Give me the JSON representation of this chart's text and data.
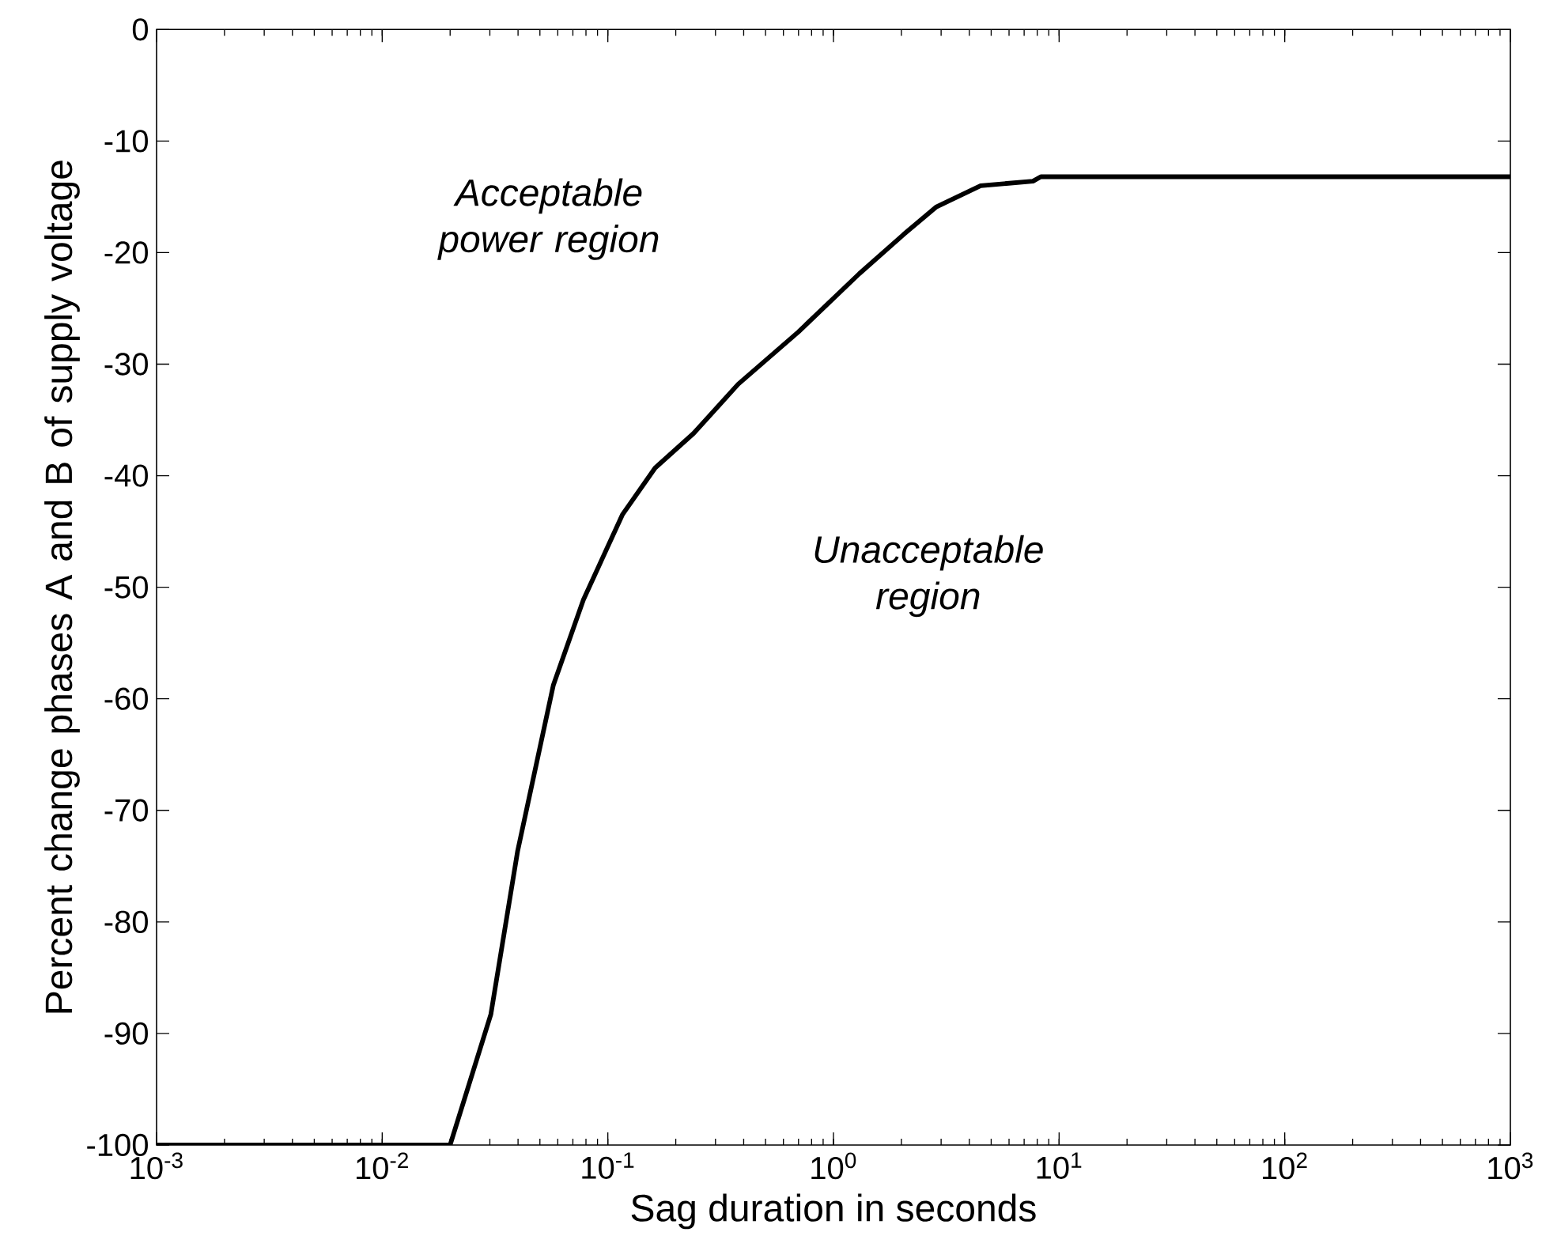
{
  "chart_data": {
    "type": "line",
    "xlabel": "Sag duration in seconds",
    "ylabel": "Percent change phases A and  B of supply voltage",
    "log": "x",
    "x": [
      0.001,
      0.02,
      0.0303,
      0.0398,
      0.0573,
      0.078,
      0.116,
      0.162,
      0.24,
      0.378,
      0.7,
      1.3,
      2.04,
      2.86,
      4.49,
      7.66,
      8.3,
      1000
    ],
    "series": [
      {
        "color": "#000000",
        "values": [
          -100,
          -100,
          -88.3,
          -73.7,
          -58.8,
          -51.1,
          -43.5,
          -39.3,
          -36.2,
          -31.8,
          -27.1,
          -21.9,
          -18.4,
          -15.9,
          -14.0,
          -13.6,
          -13.2,
          -13.2
        ]
      }
    ],
    "xlim": [
      0.001,
      1000
    ],
    "ylim": [
      -100,
      0
    ],
    "xticks": [
      {
        "value": 0.001,
        "label": "10$^{-3}$"
      },
      {
        "value": 0.01,
        "label": "10$^{-2}$"
      },
      {
        "value": 0.1,
        "label": "10$^{-1}$"
      },
      {
        "value": 1,
        "label": "10$^{0}$"
      },
      {
        "value": 10,
        "label": "10$^{1}$"
      },
      {
        "value": 100,
        "label": "10$^{2}$"
      },
      {
        "value": 1000,
        "label": "10$^{3}$"
      }
    ],
    "yticks": [
      -100,
      -90,
      -80,
      -70,
      -60,
      -50,
      -40,
      -30,
      -20,
      -10,
      0
    ],
    "annotations": [
      "*Acceptable power region*",
      "*Unacceptable region*"
    ],
    "grid": false,
    "marker": "none",
    "line_style": "solid"
  }
}
